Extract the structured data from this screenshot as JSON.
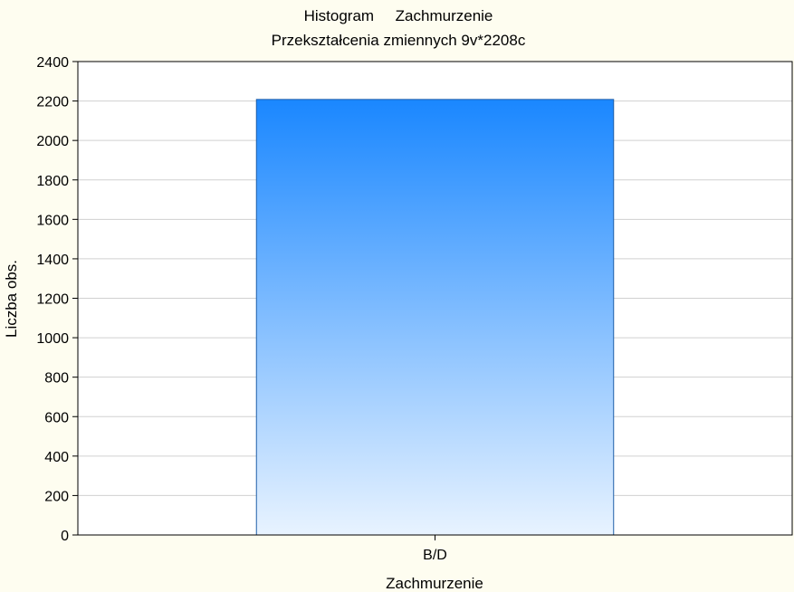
{
  "chart_data": {
    "type": "bar",
    "title": "Histogram     Zachmurzenie",
    "subtitle": "Przekształcenia zmiennych 9v*2208c",
    "xlabel": "Zachmurzenie",
    "ylabel": "Liczba obs.",
    "categories": [
      "B/D"
    ],
    "values": [
      2208
    ],
    "ylim": [
      0,
      2400
    ],
    "yticks": [
      0,
      200,
      400,
      600,
      800,
      1000,
      1200,
      1400,
      1600,
      1800,
      2000,
      2200,
      2400
    ],
    "grid": true,
    "bar_color_top": "#1a87ff",
    "bar_color_bottom": "#e8f3ff",
    "bar_edge_color": "#1f5fa8"
  }
}
